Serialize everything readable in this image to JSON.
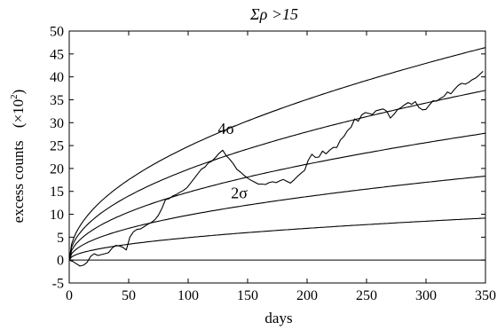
{
  "chart_data": {
    "type": "line",
    "title": "Σρ >15",
    "xlabel": "days",
    "ylabel_main": "excess counts",
    "ylabel_unit": "(×10",
    "ylabel_exp": "2",
    "ylabel_close": ")",
    "xlim": [
      0,
      350
    ],
    "ylim": [
      -5,
      50
    ],
    "xticks": [
      0,
      50,
      100,
      150,
      200,
      250,
      300,
      350
    ],
    "yticks": [
      -5,
      0,
      5,
      10,
      15,
      20,
      25,
      30,
      35,
      40,
      45,
      50
    ],
    "grid": false,
    "annotations": [
      {
        "text": "4σ",
        "x": 125,
        "y": 27.5
      },
      {
        "text": "2σ",
        "x": 136,
        "y": 13.5
      }
    ],
    "sigma_curves": [
      {
        "sigma": 1,
        "coef": 0.49
      },
      {
        "sigma": 2,
        "coef": 0.98
      },
      {
        "sigma": 3,
        "coef": 1.48
      },
      {
        "sigma": 4,
        "coef": 1.98
      },
      {
        "sigma": 5,
        "coef": 2.48
      }
    ],
    "series": [
      {
        "type": "data",
        "x": [
          0,
          3,
          6,
          9,
          12,
          15,
          18,
          21,
          24,
          27,
          30,
          33,
          36,
          39,
          42,
          45,
          48,
          51,
          54,
          57,
          60,
          63,
          66,
          69,
          72,
          75,
          78,
          81,
          84,
          87,
          90,
          93,
          96,
          99,
          102,
          105,
          108,
          111,
          114,
          117,
          120,
          123,
          126,
          129,
          132,
          135,
          138,
          141,
          144,
          147,
          150,
          153,
          156,
          159,
          162,
          165,
          168,
          171,
          174,
          177,
          180,
          183,
          186,
          189,
          192,
          195,
          198,
          201,
          204,
          207,
          210,
          213,
          216,
          219,
          222,
          225,
          228,
          231,
          234,
          237,
          240,
          243,
          246,
          249,
          252,
          255,
          258,
          261,
          264,
          267,
          270,
          273,
          276,
          279,
          282,
          285,
          288,
          291,
          294,
          297,
          300,
          303,
          306,
          309,
          312,
          315,
          318,
          321,
          324,
          327,
          330,
          333,
          336,
          339,
          342,
          345,
          348
        ],
        "y": [
          0,
          -0.3,
          -0.8,
          -1.3,
          -1.1,
          -0.5,
          0.8,
          1.4,
          1.0,
          1.2,
          1.4,
          1.6,
          2.6,
          3.2,
          3.1,
          2.8,
          2.2,
          5.0,
          6.2,
          6.7,
          6.8,
          7.3,
          7.8,
          8.2,
          8.8,
          9.8,
          11.3,
          13.2,
          13.4,
          14.0,
          14.3,
          14.8,
          15.2,
          15.8,
          16.8,
          17.8,
          18.8,
          19.8,
          20.3,
          21.2,
          21.6,
          22.4,
          23.3,
          24.0,
          22.8,
          22.0,
          21.0,
          19.8,
          19.2,
          18.5,
          17.9,
          17.4,
          17.0,
          16.6,
          16.6,
          16.5,
          16.9,
          17.1,
          16.9,
          17.3,
          17.6,
          17.2,
          16.8,
          17.5,
          18.3,
          19.0,
          19.6,
          21.8,
          23.1,
          22.4,
          22.5,
          23.8,
          23.2,
          24.0,
          24.6,
          24.6,
          26.2,
          27.0,
          28.3,
          29.0,
          30.8,
          30.3,
          31.7,
          32.2,
          32.0,
          31.8,
          32.6,
          32.8,
          33.0,
          32.5,
          31.0,
          31.8,
          32.8,
          33.3,
          33.9,
          34.4,
          34.0,
          34.6,
          33.3,
          32.8,
          32.9,
          33.9,
          34.8,
          34.7,
          35.3,
          35.7,
          36.7,
          36.3,
          37.3,
          38.1,
          38.6,
          38.4,
          38.8,
          39.4,
          39.8,
          40.5,
          41.2
        ]
      }
    ]
  }
}
